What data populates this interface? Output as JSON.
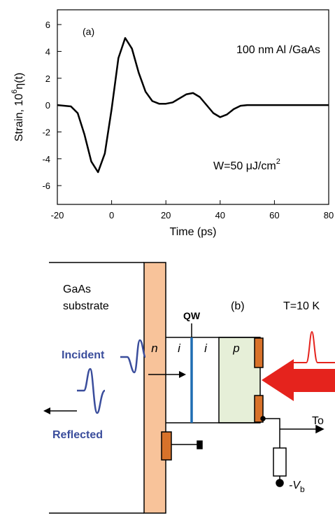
{
  "chart_data": {
    "type": "line",
    "panel_label": "(a)",
    "annotations": [
      "100 nm Al /GaAs"
    ],
    "fluence": {
      "text": "W=50 μJ/cm",
      "sup": "2"
    },
    "xlabel": "Time (ps)",
    "ylabel": {
      "text": "Strain, 10",
      "sup": "6",
      "rest": "η(t)"
    },
    "x": [
      -20,
      -15,
      -12.5,
      -10,
      -7.5,
      -5,
      -2.5,
      0,
      2.5,
      5,
      7.5,
      10,
      12.5,
      15,
      17.5,
      20,
      22.5,
      25,
      27.5,
      30,
      32.5,
      35,
      37.5,
      40,
      42.5,
      45,
      47.5,
      50,
      60,
      70,
      80
    ],
    "series": [
      {
        "color": "#000000",
        "values": [
          0,
          -0.1,
          -0.6,
          -2.2,
          -4.2,
          -5,
          -3.6,
          -0.3,
          3.5,
          5,
          4.2,
          2.4,
          1.0,
          0.3,
          0.1,
          0.1,
          0.2,
          0.5,
          0.8,
          0.9,
          0.6,
          0,
          -0.6,
          -0.9,
          -0.7,
          -0.3,
          -0.05,
          0,
          0,
          0,
          0
        ]
      }
    ],
    "xlim": [
      -20,
      80
    ],
    "xticks": [
      -20,
      0,
      20,
      40,
      60,
      80
    ],
    "ylim": [
      -7.4,
      7.1
    ],
    "yticks": [
      -6,
      -4,
      -2,
      0,
      2,
      4,
      6
    ]
  },
  "diagram": {
    "panel_label": "(b)",
    "temperature": "T=10 K",
    "substrate": [
      "GaAs",
      "substrate"
    ],
    "qw": "QW",
    "regions": [
      "n",
      "i",
      "i",
      "p"
    ],
    "incident": "Incident",
    "reflected": "Reflected",
    "output": "To",
    "bias": {
      "text": "-V",
      "sub": "b"
    }
  }
}
